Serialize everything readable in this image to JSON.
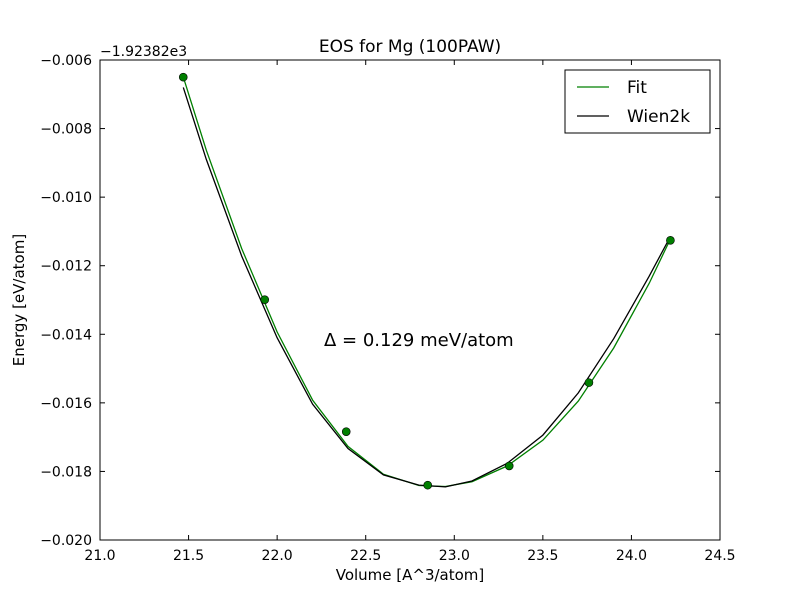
{
  "chart_data": {
    "type": "line",
    "title": "EOS for Mg (100PAW)",
    "xlabel": "Volume [A^3/atom]",
    "ylabel": "Energy [eV/atom]",
    "y_offset_label": "−1.92382e3",
    "annotation": "Δ = 0.129 meV/atom",
    "xlim": [
      21.0,
      24.5
    ],
    "ylim": [
      -0.02,
      -0.006
    ],
    "x_ticks": [
      21.0,
      21.5,
      22.0,
      22.5,
      23.0,
      23.5,
      24.0,
      24.5
    ],
    "x_tick_labels": [
      "21.0",
      "21.5",
      "22.0",
      "22.5",
      "23.0",
      "23.5",
      "24.0",
      "24.5"
    ],
    "y_ticks": [
      -0.02,
      -0.018,
      -0.016,
      -0.014,
      -0.012,
      -0.01,
      -0.008,
      -0.006
    ],
    "y_tick_labels": [
      "−0.020",
      "−0.018",
      "−0.016",
      "−0.014",
      "−0.012",
      "−0.010",
      "−0.008",
      "−0.006"
    ],
    "grid": false,
    "legend_position": "top-right",
    "points": {
      "x": [
        21.47,
        21.93,
        22.39,
        22.85,
        23.31,
        23.76,
        24.22
      ],
      "y": [
        -0.0065,
        -0.01299,
        -0.01684,
        -0.0184,
        -0.01784,
        -0.01541,
        -0.01126
      ],
      "color": "#007f00"
    },
    "series": [
      {
        "name": "Fit",
        "color": "#008000",
        "x": [
          21.47,
          21.6,
          21.8,
          22.0,
          22.2,
          22.4,
          22.6,
          22.8,
          22.95,
          23.1,
          23.3,
          23.5,
          23.7,
          23.9,
          24.1,
          24.22
        ],
        "y": [
          -0.0065,
          -0.00863,
          -0.0115,
          -0.01393,
          -0.01592,
          -0.01727,
          -0.01808,
          -0.01841,
          -0.01844,
          -0.0183,
          -0.01784,
          -0.01709,
          -0.01595,
          -0.0144,
          -0.01252,
          -0.01122
        ]
      },
      {
        "name": "Wien2k",
        "color": "#000000",
        "x": [
          21.47,
          21.6,
          21.8,
          22.0,
          22.2,
          22.4,
          22.6,
          22.8,
          22.95,
          23.1,
          23.3,
          23.5,
          23.7,
          23.9,
          24.1,
          24.22
        ],
        "y": [
          -0.0068,
          -0.0089,
          -0.01172,
          -0.0141,
          -0.01604,
          -0.01733,
          -0.0181,
          -0.0184,
          -0.01845,
          -0.01828,
          -0.01776,
          -0.01694,
          -0.01571,
          -0.01413,
          -0.01231,
          -0.01115
        ]
      }
    ]
  }
}
